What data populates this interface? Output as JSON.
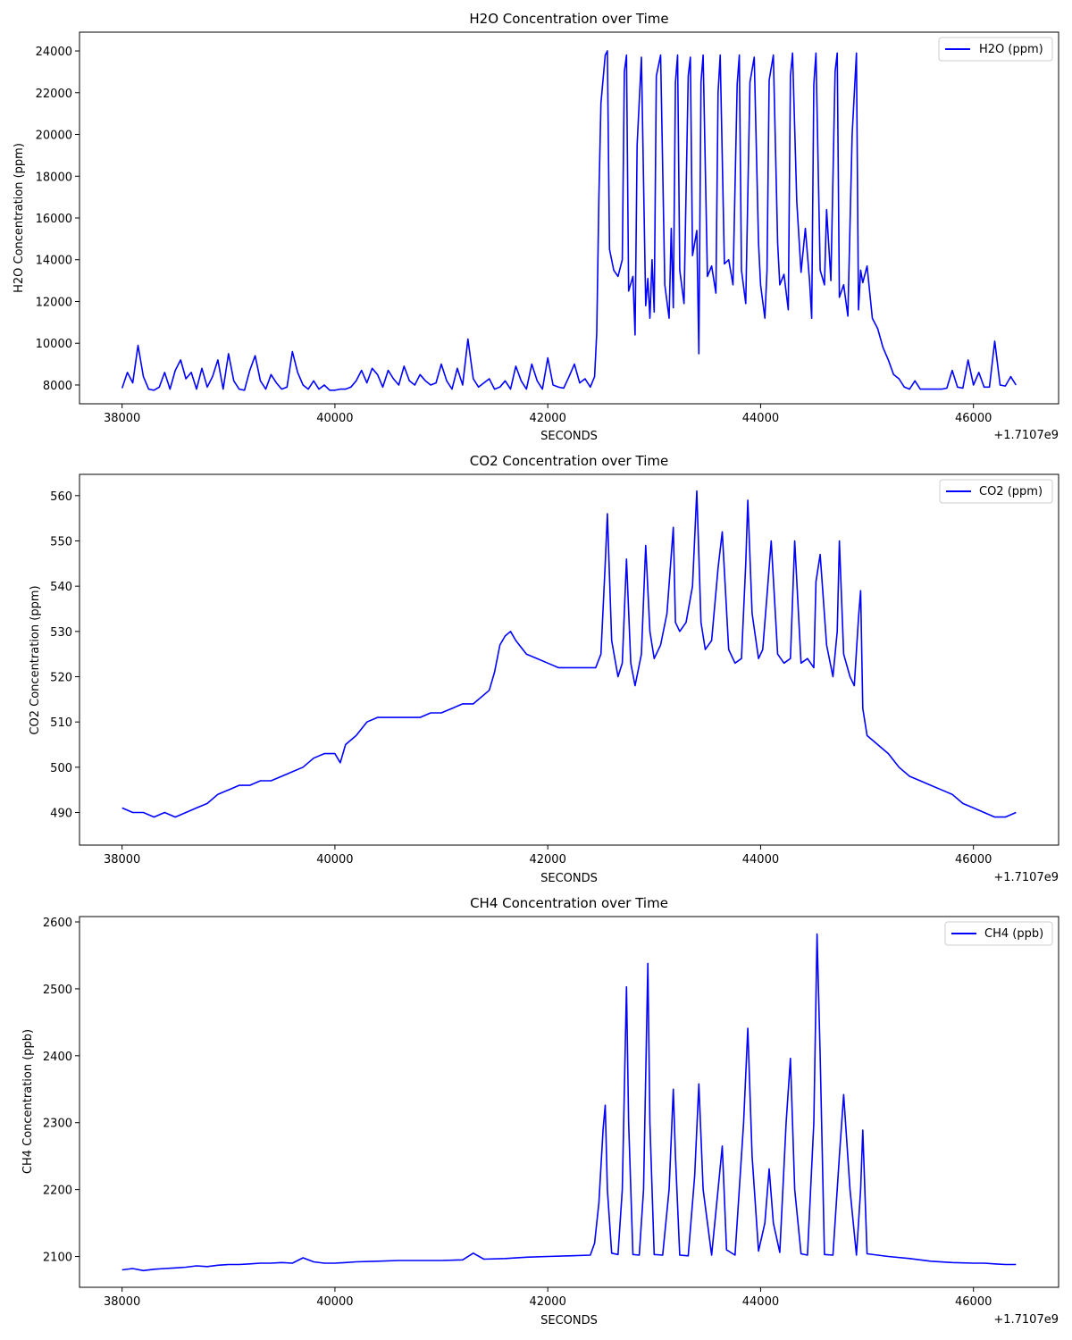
{
  "chart_data": [
    {
      "type": "line",
      "title": "H2O Concentration over Time",
      "xlabel": "SECONDS",
      "ylabel": "H2O Concentration (ppm)",
      "x_offset_label": "+1.7107e9",
      "xlim": [
        37600,
        46800
      ],
      "ylim": [
        7100,
        24900
      ],
      "xticks": [
        38000,
        40000,
        42000,
        44000,
        46000
      ],
      "yticks": [
        8000,
        10000,
        12000,
        14000,
        16000,
        18000,
        20000,
        22000,
        24000
      ],
      "legend": "top-right",
      "grid": false,
      "color": "#0000ff",
      "series": [
        {
          "name": "H2O (ppm)",
          "x": [
            38000,
            38050,
            38100,
            38150,
            38200,
            38250,
            38300,
            38350,
            38400,
            38450,
            38500,
            38550,
            38600,
            38650,
            38700,
            38750,
            38800,
            38850,
            38900,
            38950,
            39000,
            39050,
            39100,
            39150,
            39200,
            39250,
            39300,
            39350,
            39400,
            39450,
            39500,
            39550,
            39600,
            39650,
            39700,
            39750,
            39800,
            39850,
            39900,
            39950,
            40000,
            40050,
            40100,
            40150,
            40200,
            40250,
            40300,
            40350,
            40400,
            40450,
            40500,
            40550,
            40600,
            40650,
            40700,
            40750,
            40800,
            40850,
            40900,
            40950,
            41000,
            41050,
            41100,
            41150,
            41200,
            41250,
            41300,
            41350,
            41400,
            41450,
            41500,
            41550,
            41600,
            41650,
            41700,
            41750,
            41800,
            41850,
            41900,
            41950,
            42000,
            42050,
            42100,
            42150,
            42200,
            42250,
            42300,
            42350,
            42400,
            42440,
            42460,
            42480,
            42500,
            42540,
            42560,
            42580,
            42620,
            42660,
            42700,
            42720,
            42740,
            42760,
            42800,
            42820,
            42840,
            42880,
            42920,
            42940,
            42960,
            42980,
            43000,
            43020,
            43060,
            43100,
            43140,
            43160,
            43180,
            43200,
            43220,
            43240,
            43280,
            43320,
            43340,
            43360,
            43400,
            43420,
            43440,
            43460,
            43500,
            43540,
            43580,
            43600,
            43620,
            43660,
            43700,
            43740,
            43780,
            43800,
            43820,
            43860,
            43900,
            43940,
            43980,
            44000,
            44040,
            44060,
            44080,
            44120,
            44160,
            44180,
            44220,
            44260,
            44280,
            44300,
            44340,
            44380,
            44420,
            44460,
            44480,
            44500,
            44520,
            44560,
            44600,
            44620,
            44660,
            44700,
            44720,
            44740,
            44780,
            44820,
            44860,
            44900,
            44920,
            44940,
            44960,
            45000,
            45050,
            45100,
            45150,
            45200,
            45250,
            45300,
            45350,
            45400,
            45450,
            45500,
            45550,
            45600,
            45650,
            45700,
            45750,
            45800,
            45850,
            45900,
            45950,
            46000,
            46050,
            46100,
            46150,
            46200,
            46250,
            46300,
            46350,
            46400
          ],
          "y": [
            7850,
            8600,
            8100,
            9900,
            8400,
            7800,
            7750,
            7900,
            8600,
            7800,
            8700,
            9200,
            8300,
            8600,
            7800,
            8800,
            7900,
            8400,
            9200,
            7800,
            9500,
            8200,
            7800,
            7750,
            8700,
            9400,
            8200,
            7800,
            8500,
            8100,
            7800,
            7900,
            9600,
            8600,
            8000,
            7800,
            8200,
            7800,
            8000,
            7750,
            7750,
            7800,
            7800,
            7900,
            8200,
            8700,
            8100,
            8800,
            8500,
            7900,
            8700,
            8300,
            8000,
            8900,
            8200,
            8000,
            8500,
            8200,
            8000,
            8100,
            9000,
            8200,
            7800,
            8800,
            8000,
            10200,
            8300,
            7900,
            8100,
            8300,
            7800,
            7900,
            8200,
            7800,
            8900,
            8200,
            7800,
            9000,
            8200,
            7800,
            9300,
            8000,
            7900,
            7850,
            8400,
            9000,
            8100,
            8300,
            7900,
            8400,
            10500,
            17000,
            21500,
            23800,
            24000,
            14500,
            13500,
            13200,
            14000,
            23000,
            23800,
            12500,
            13200,
            10400,
            19500,
            23700,
            11800,
            13100,
            11200,
            14000,
            11500,
            22800,
            23800,
            12800,
            11200,
            15500,
            11700,
            22500,
            23800,
            13500,
            11900,
            22800,
            23700,
            14200,
            15400,
            9500,
            22500,
            23800,
            13200,
            13700,
            12400,
            22000,
            23800,
            13800,
            14000,
            12800,
            22400,
            23800,
            13500,
            11900,
            22500,
            23700,
            14800,
            12800,
            11200,
            13500,
            22600,
            23800,
            14800,
            12800,
            13300,
            11600,
            22800,
            23900,
            16800,
            13400,
            15500,
            13000,
            11200,
            22400,
            23900,
            13500,
            12800,
            16400,
            13000,
            23000,
            23900,
            12200,
            12800,
            11300,
            20000,
            23900,
            11600,
            13500,
            12900,
            13700,
            11200,
            10700,
            9800,
            9200,
            8500,
            8300,
            7900,
            7800,
            8200,
            7800,
            7800,
            7800,
            7800,
            7800,
            7850,
            8700,
            7900,
            7850,
            9200,
            8000,
            8600,
            7900,
            7900,
            10100,
            8000,
            7950,
            8400,
            8000
          ]
        }
      ]
    },
    {
      "type": "line",
      "title": "CO2 Concentration over Time",
      "xlabel": "SECONDS",
      "ylabel": "CO2 Concentration (ppm)",
      "x_offset_label": "+1.7107e9",
      "xlim": [
        37600,
        46800
      ],
      "ylim": [
        482.8,
        564.7
      ],
      "xticks": [
        38000,
        40000,
        42000,
        44000,
        46000
      ],
      "yticks": [
        490,
        500,
        510,
        520,
        530,
        540,
        550,
        560
      ],
      "legend": "top-right",
      "grid": false,
      "color": "#0000ff",
      "series": [
        {
          "name": "CO2 (ppm)",
          "x": [
            38000,
            38100,
            38200,
            38300,
            38400,
            38500,
            38600,
            38700,
            38800,
            38900,
            39000,
            39100,
            39200,
            39300,
            39400,
            39500,
            39600,
            39700,
            39800,
            39900,
            40000,
            40050,
            40100,
            40200,
            40300,
            40400,
            40500,
            40600,
            40700,
            40800,
            40900,
            41000,
            41100,
            41200,
            41300,
            41400,
            41450,
            41500,
            41550,
            41600,
            41650,
            41700,
            41800,
            41900,
            42000,
            42100,
            42200,
            42300,
            42400,
            42450,
            42500,
            42540,
            42560,
            42600,
            42660,
            42700,
            42740,
            42780,
            42820,
            42880,
            42920,
            42960,
            43000,
            43060,
            43120,
            43180,
            43200,
            43240,
            43300,
            43360,
            43400,
            43440,
            43480,
            43540,
            43600,
            43640,
            43700,
            43760,
            43820,
            43860,
            43880,
            43920,
            43980,
            44020,
            44060,
            44100,
            44160,
            44220,
            44280,
            44320,
            44380,
            44440,
            44500,
            44520,
            44560,
            44620,
            44680,
            44720,
            44740,
            44780,
            44840,
            44880,
            44920,
            44940,
            44960,
            45000,
            45100,
            45200,
            45300,
            45400,
            45500,
            45600,
            45700,
            45800,
            45900,
            46000,
            46100,
            46200,
            46300,
            46400
          ],
          "y": [
            491,
            490,
            490,
            489,
            490,
            489,
            490,
            491,
            492,
            494,
            495,
            496,
            496,
            497,
            497,
            498,
            499,
            500,
            502,
            503,
            503,
            501,
            505,
            507,
            510,
            511,
            511,
            511,
            511,
            511,
            512,
            512,
            513,
            514,
            514,
            516,
            517,
            521,
            527,
            529,
            530,
            528,
            525,
            524,
            523,
            522,
            522,
            522,
            522,
            522,
            525,
            545,
            556,
            528,
            520,
            523,
            546,
            523,
            518,
            525,
            549,
            530,
            524,
            527,
            534,
            553,
            532,
            530,
            532,
            540,
            561,
            532,
            526,
            528,
            544,
            552,
            526,
            523,
            524,
            545,
            559,
            534,
            524,
            526,
            538,
            550,
            525,
            523,
            524,
            550,
            523,
            524,
            522,
            541,
            547,
            527,
            520,
            530,
            550,
            525,
            520,
            518,
            533,
            539,
            513,
            507,
            505,
            503,
            500,
            498,
            497,
            496,
            495,
            494,
            492,
            491,
            490,
            489,
            489,
            490
          ]
        }
      ]
    },
    {
      "type": "line",
      "title": "CH4 Concentration over Time",
      "xlabel": "SECONDS",
      "ylabel": "CH4 Concentration (ppb)",
      "x_offset_label": "+1.7107e9",
      "xlim": [
        37600,
        46800
      ],
      "ylim": [
        2054,
        2608
      ],
      "xticks": [
        38000,
        40000,
        42000,
        44000,
        46000
      ],
      "yticks": [
        2100,
        2200,
        2300,
        2400,
        2500,
        2600
      ],
      "legend": "top-right",
      "grid": false,
      "color": "#0000ff",
      "series": [
        {
          "name": "CH4 (ppb)",
          "x": [
            38000,
            38100,
            38200,
            38300,
            38400,
            38500,
            38600,
            38700,
            38800,
            38900,
            39000,
            39100,
            39200,
            39300,
            39400,
            39500,
            39600,
            39700,
            39800,
            39900,
            40000,
            40100,
            40200,
            40400,
            40600,
            40800,
            41000,
            41200,
            41300,
            41400,
            41600,
            41800,
            42000,
            42200,
            42400,
            42440,
            42480,
            42520,
            42540,
            42560,
            42600,
            42660,
            42700,
            42740,
            42760,
            42800,
            42860,
            42900,
            42940,
            42960,
            43000,
            43080,
            43140,
            43180,
            43200,
            43240,
            43320,
            43380,
            43420,
            43460,
            43540,
            43600,
            43640,
            43680,
            43760,
            43840,
            43880,
            43920,
            43980,
            44040,
            44080,
            44120,
            44180,
            44240,
            44280,
            44320,
            44380,
            44440,
            44500,
            44530,
            44560,
            44600,
            44680,
            44740,
            44780,
            44840,
            44900,
            44940,
            44960,
            45000,
            45200,
            45400,
            45600,
            45800,
            46000,
            46100,
            46200,
            46300,
            46400
          ],
          "y": [
            2080,
            2082,
            2079,
            2081,
            2082,
            2083,
            2084,
            2086,
            2085,
            2087,
            2088,
            2088,
            2089,
            2090,
            2090,
            2091,
            2090,
            2098,
            2092,
            2090,
            2090,
            2091,
            2092,
            2093,
            2094,
            2094,
            2094,
            2095,
            2105,
            2096,
            2097,
            2099,
            2100,
            2101,
            2102,
            2120,
            2180,
            2290,
            2326,
            2200,
            2105,
            2103,
            2200,
            2503,
            2300,
            2103,
            2102,
            2200,
            2538,
            2300,
            2103,
            2102,
            2200,
            2350,
            2250,
            2102,
            2101,
            2220,
            2358,
            2200,
            2102,
            2200,
            2265,
            2110,
            2102,
            2300,
            2441,
            2250,
            2108,
            2150,
            2231,
            2150,
            2106,
            2300,
            2396,
            2200,
            2104,
            2102,
            2300,
            2582,
            2400,
            2103,
            2102,
            2250,
            2342,
            2200,
            2102,
            2200,
            2289,
            2104,
            2100,
            2097,
            2093,
            2091,
            2090,
            2090,
            2089,
            2088,
            2088
          ]
        }
      ]
    }
  ]
}
